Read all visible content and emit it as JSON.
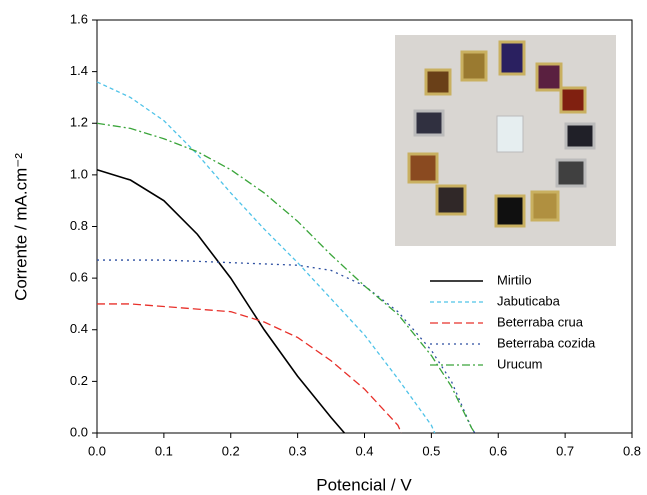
{
  "chart_data": {
    "type": "line",
    "xlabel": "Potencial / V",
    "ylabel": "Corrente / mA.cm⁻²",
    "xlim": [
      0,
      0.8
    ],
    "ylim": [
      0,
      1.6
    ],
    "xticks": [
      {
        "value": 0,
        "label": "0.0"
      },
      {
        "value": 0.1,
        "label": "0.1"
      },
      {
        "value": 0.2,
        "label": "0.2"
      },
      {
        "value": 0.3,
        "label": "0.3"
      },
      {
        "value": 0.4,
        "label": "0.4"
      },
      {
        "value": 0.5,
        "label": "0.5"
      },
      {
        "value": 0.6,
        "label": "0.6"
      },
      {
        "value": 0.7,
        "label": "0.7"
      },
      {
        "value": 0.8,
        "label": "0.8"
      }
    ],
    "yticks": [
      {
        "value": 0,
        "label": "0.0"
      },
      {
        "value": 0.2,
        "label": "0.2"
      },
      {
        "value": 0.4,
        "label": "0.4"
      },
      {
        "value": 0.6,
        "label": "0.6"
      },
      {
        "value": 0.8,
        "label": "0.8"
      },
      {
        "value": 1.0,
        "label": "1.0"
      },
      {
        "value": 1.2,
        "label": "1.2"
      },
      {
        "value": 1.4,
        "label": "1.4"
      },
      {
        "value": 1.6,
        "label": "1.6"
      }
    ],
    "legend": "right",
    "series": [
      {
        "name": "Mirtilo",
        "color": "#000000",
        "dash": "solid",
        "x": [
          0,
          0.05,
          0.1,
          0.15,
          0.2,
          0.25,
          0.3,
          0.35,
          0.37
        ],
        "values": [
          1.02,
          0.98,
          0.9,
          0.77,
          0.6,
          0.4,
          0.22,
          0.06,
          0
        ]
      },
      {
        "name": "Jabuticaba",
        "color": "#4fc3e8",
        "dash": "dash",
        "x": [
          0,
          0.05,
          0.1,
          0.15,
          0.2,
          0.25,
          0.3,
          0.35,
          0.4,
          0.45,
          0.5,
          0.505
        ],
        "values": [
          1.36,
          1.3,
          1.21,
          1.08,
          0.93,
          0.79,
          0.66,
          0.52,
          0.38,
          0.21,
          0.03,
          0
        ]
      },
      {
        "name": "Beterraba crua",
        "color": "#e8302a",
        "dash": "longdash",
        "x": [
          0,
          0.05,
          0.1,
          0.15,
          0.2,
          0.25,
          0.3,
          0.35,
          0.4,
          0.45,
          0.455
        ],
        "values": [
          0.5,
          0.5,
          0.49,
          0.48,
          0.47,
          0.43,
          0.37,
          0.28,
          0.17,
          0.03,
          0
        ]
      },
      {
        "name": "Beterraba cozida",
        "color": "#2c4ea0",
        "dash": "dot",
        "x": [
          0,
          0.1,
          0.2,
          0.3,
          0.35,
          0.4,
          0.45,
          0.5,
          0.53,
          0.56,
          0.565
        ],
        "values": [
          0.67,
          0.67,
          0.66,
          0.65,
          0.63,
          0.57,
          0.47,
          0.32,
          0.2,
          0.02,
          0
        ]
      },
      {
        "name": "Urucum",
        "color": "#3aa53a",
        "dash": "dashdot",
        "x": [
          0,
          0.05,
          0.1,
          0.15,
          0.2,
          0.25,
          0.3,
          0.35,
          0.4,
          0.45,
          0.5,
          0.53,
          0.56,
          0.565
        ],
        "values": [
          1.2,
          1.18,
          1.14,
          1.09,
          1.02,
          0.93,
          0.82,
          0.69,
          0.57,
          0.46,
          0.3,
          0.18,
          0.02,
          0
        ]
      }
    ]
  }
}
